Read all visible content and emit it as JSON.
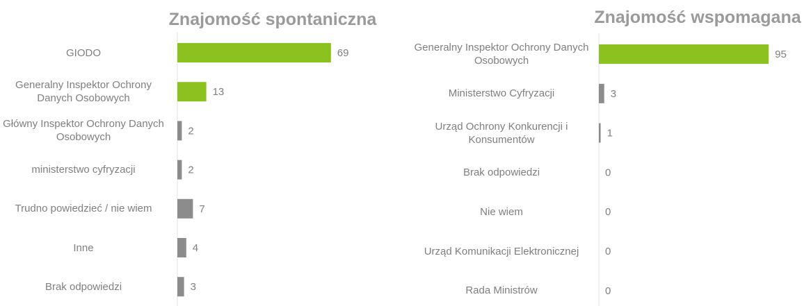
{
  "chart_data": [
    {
      "type": "bar",
      "orientation": "horizontal",
      "title": "Znajomość spontaniczna",
      "categories": [
        "GIODO",
        "Generalny Inspektor Ochrony Danych Osobowych",
        "Główny Inspektor Ochrony Danych Osobowych",
        "ministerstwo cyfryzacji",
        "Trudno powiedzieć / nie wiem",
        "Inne",
        "Brak odpowiedzi"
      ],
      "values": [
        69,
        13,
        2,
        2,
        7,
        4,
        3
      ],
      "colors": [
        "#8cc21f",
        "#8cc21f",
        "#8c8c8c",
        "#8c8c8c",
        "#8c8c8c",
        "#8c8c8c",
        "#8c8c8c"
      ]
    },
    {
      "type": "bar",
      "orientation": "horizontal",
      "title": "Znajomość wspomagana",
      "categories": [
        "Generalny Inspektor Ochrony Danych Osobowych",
        "Ministerstwo Cyfryzacji",
        "Urząd Ochrony Konkurencji i Konsumentów",
        "Brak odpowiedzi",
        "Nie wiem",
        "Urząd Komunikacji Elektronicznej",
        "Rada Ministrów"
      ],
      "values": [
        95,
        3,
        1,
        0,
        0,
        0,
        0
      ],
      "colors": [
        "#8cc21f",
        "#8c8c8c",
        "#8c8c8c",
        "#8c8c8c",
        "#8c8c8c",
        "#8c8c8c",
        "#8c8c8c"
      ]
    }
  ]
}
